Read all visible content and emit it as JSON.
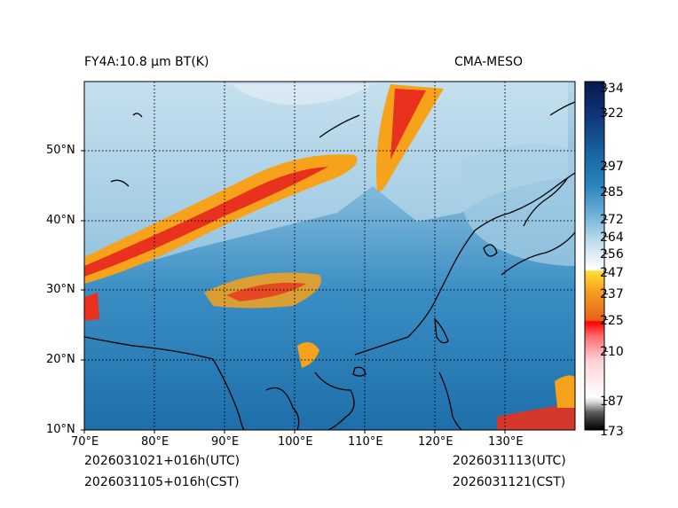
{
  "header": {
    "title_left": "FY4A:10.8 µm BT(K)",
    "title_right": "CMA-MESO"
  },
  "footer": {
    "init_utc": "2026031021+016h(UTC)",
    "init_cst": "2026031105+016h(CST)",
    "valid_utc": "2026031113(UTC)",
    "valid_cst": "2026031121(CST)"
  },
  "map": {
    "lon_range": [
      70,
      140
    ],
    "lat_range": [
      10,
      60
    ],
    "lon_ticks": [
      {
        "value": 70,
        "label": "70°E"
      },
      {
        "value": 80,
        "label": "80°E"
      },
      {
        "value": 90,
        "label": "90°E"
      },
      {
        "value": 100,
        "label": "100°E"
      },
      {
        "value": 110,
        "label": "110°E"
      },
      {
        "value": 120,
        "label": "120°E"
      },
      {
        "value": 130,
        "label": "130°E"
      }
    ],
    "lat_ticks": [
      {
        "value": 10,
        "label": "10°N"
      },
      {
        "value": 20,
        "label": "20°N"
      },
      {
        "value": 30,
        "label": "30°N"
      },
      {
        "value": 40,
        "label": "40°N"
      },
      {
        "value": 50,
        "label": "50°N"
      }
    ],
    "gridlines": "dotted"
  },
  "colorbar": {
    "range": [
      173,
      337
    ],
    "ticks": [
      "334",
      "322",
      "297",
      "285",
      "272",
      "264",
      "256",
      "247",
      "237",
      "225",
      "210",
      "187",
      "173"
    ],
    "tick_values": [
      334,
      322,
      297,
      285,
      272,
      264,
      256,
      247,
      237,
      225,
      210,
      187,
      173
    ]
  },
  "colors": {
    "cold_cloud": "#e8321e",
    "mid_cloud": "#f6a21a",
    "cirrus": "#d6e8f2",
    "clear_land": "#3f8fc2",
    "warm_surface": "#1a6aa6",
    "coast": "#000000"
  }
}
